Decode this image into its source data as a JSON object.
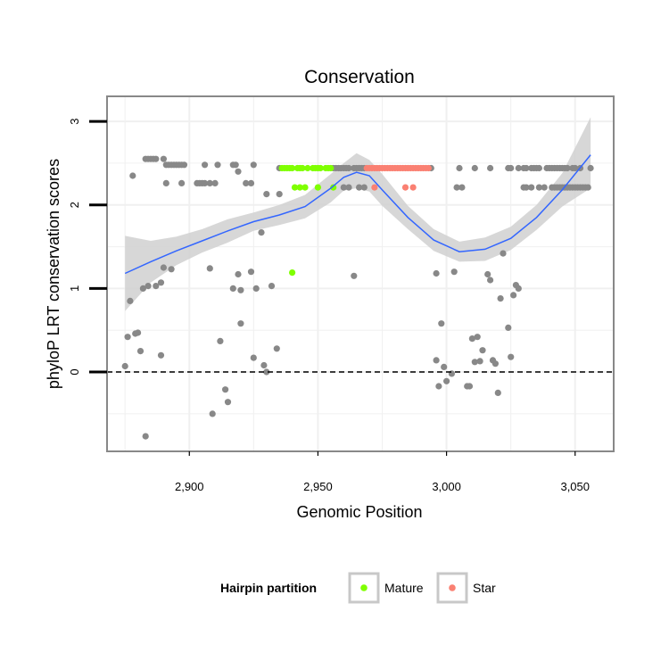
{
  "chart_data": {
    "type": "scatter",
    "title": "Conservation",
    "xlabel": "Genomic Position",
    "ylabel": "phyloP LRT conservation scores",
    "xlim": [
      2868,
      3065
    ],
    "ylim": [
      -0.95,
      3.3
    ],
    "x_ticks": [
      2900,
      2950,
      3000,
      3050
    ],
    "x_tick_labels": [
      "2,900",
      "2,950",
      "3,000",
      "3,050"
    ],
    "y_ticks": [
      0,
      1,
      2,
      3
    ],
    "y_tick_labels": [
      "0",
      "1",
      "2",
      "3"
    ],
    "grid": true,
    "reference_line": {
      "y": 0,
      "style": "dashed"
    },
    "legend": {
      "title": "Hairpin partition",
      "placement": "bottom",
      "entries": [
        {
          "label": "Mature",
          "color": "#7fff00"
        },
        {
          "label": "Star",
          "color": "#fa8072"
        }
      ]
    },
    "colors": {
      "other": "#888888",
      "smooth_line": "#3366ff",
      "ribbon": "#d0d0d0",
      "panel_border": "#888888",
      "grid": "#f0f0f0"
    },
    "series": [
      {
        "name": "Mature",
        "points": [
          [
            2936,
            2.44
          ],
          [
            2937,
            2.44
          ],
          [
            2938,
            2.44
          ],
          [
            2939,
            2.44
          ],
          [
            2940,
            2.44
          ],
          [
            2942,
            2.44
          ],
          [
            2943,
            2.44
          ],
          [
            2944,
            2.44
          ],
          [
            2946,
            2.44
          ],
          [
            2948,
            2.44
          ],
          [
            2949,
            2.44
          ],
          [
            2950,
            2.44
          ],
          [
            2951,
            2.44
          ],
          [
            2953,
            2.44
          ],
          [
            2954,
            2.44
          ],
          [
            2955,
            2.44
          ],
          [
            2941,
            2.21
          ],
          [
            2943,
            2.21
          ],
          [
            2945,
            2.21
          ],
          [
            2950,
            2.21
          ],
          [
            2956,
            2.21
          ],
          [
            2940,
            1.19
          ]
        ]
      },
      {
        "name": "Star",
        "points": [
          [
            2969,
            2.44
          ],
          [
            2970,
            2.44
          ],
          [
            2971,
            2.44
          ],
          [
            2972,
            2.44
          ],
          [
            2973,
            2.44
          ],
          [
            2974,
            2.44
          ],
          [
            2975,
            2.44
          ],
          [
            2976,
            2.44
          ],
          [
            2977,
            2.44
          ],
          [
            2978,
            2.44
          ],
          [
            2979,
            2.44
          ],
          [
            2980,
            2.44
          ],
          [
            2981,
            2.44
          ],
          [
            2982,
            2.44
          ],
          [
            2983,
            2.44
          ],
          [
            2984,
            2.44
          ],
          [
            2985,
            2.44
          ],
          [
            2986,
            2.44
          ],
          [
            2987,
            2.44
          ],
          [
            2988,
            2.44
          ],
          [
            2989,
            2.44
          ],
          [
            2990,
            2.44
          ],
          [
            2991,
            2.44
          ],
          [
            2992,
            2.44
          ],
          [
            2993,
            2.44
          ],
          [
            2972,
            2.21
          ],
          [
            2984,
            2.21
          ],
          [
            2987,
            2.21
          ]
        ]
      },
      {
        "name": "Other",
        "points": [
          [
            2878,
            2.35
          ],
          [
            2883,
            2.55
          ],
          [
            2884,
            2.55
          ],
          [
            2885,
            2.55
          ],
          [
            2886,
            2.55
          ],
          [
            2887,
            2.55
          ],
          [
            2890,
            2.55
          ],
          [
            2891,
            2.48
          ],
          [
            2892,
            2.48
          ],
          [
            2893,
            2.48
          ],
          [
            2894,
            2.48
          ],
          [
            2895,
            2.48
          ],
          [
            2896,
            2.48
          ],
          [
            2897,
            2.48
          ],
          [
            2898,
            2.48
          ],
          [
            2906,
            2.48
          ],
          [
            2911,
            2.48
          ],
          [
            2917,
            2.48
          ],
          [
            2918,
            2.48
          ],
          [
            2925,
            2.48
          ],
          [
            2891,
            2.26
          ],
          [
            2897,
            2.26
          ],
          [
            2903,
            2.26
          ],
          [
            2904,
            2.26
          ],
          [
            2905,
            2.26
          ],
          [
            2906,
            2.26
          ],
          [
            2908,
            2.26
          ],
          [
            2910,
            2.26
          ],
          [
            2922,
            2.26
          ],
          [
            2924,
            2.26
          ],
          [
            2919,
            2.4
          ],
          [
            2930,
            2.13
          ],
          [
            2935,
            2.13
          ],
          [
            2935,
            2.44
          ],
          [
            2956,
            2.44
          ],
          [
            2957,
            2.44
          ],
          [
            2958,
            2.44
          ],
          [
            2959,
            2.44
          ],
          [
            2960,
            2.44
          ],
          [
            2961,
            2.44
          ],
          [
            2962,
            2.44
          ],
          [
            2964,
            2.44
          ],
          [
            2965,
            2.44
          ],
          [
            2966,
            2.44
          ],
          [
            2967,
            2.44
          ],
          [
            2968,
            2.44
          ],
          [
            2960,
            2.21
          ],
          [
            2962,
            2.21
          ],
          [
            2966,
            2.21
          ],
          [
            2968,
            2.21
          ],
          [
            2994,
            2.44
          ],
          [
            3005,
            2.44
          ],
          [
            3011,
            2.44
          ],
          [
            3017,
            2.44
          ],
          [
            3024,
            2.44
          ],
          [
            3025,
            2.44
          ],
          [
            3028,
            2.44
          ],
          [
            3030,
            2.44
          ],
          [
            3031,
            2.44
          ],
          [
            3033,
            2.44
          ],
          [
            3034,
            2.44
          ],
          [
            3035,
            2.44
          ],
          [
            3036,
            2.44
          ],
          [
            3039,
            2.44
          ],
          [
            3040,
            2.44
          ],
          [
            3041,
            2.44
          ],
          [
            3042,
            2.44
          ],
          [
            3043,
            2.44
          ],
          [
            3044,
            2.44
          ],
          [
            3045,
            2.44
          ],
          [
            3046,
            2.44
          ],
          [
            3047,
            2.44
          ],
          [
            3049,
            2.44
          ],
          [
            3050,
            2.44
          ],
          [
            3052,
            2.44
          ],
          [
            3056,
            2.44
          ],
          [
            3004,
            2.21
          ],
          [
            3006,
            2.21
          ],
          [
            3030,
            2.21
          ],
          [
            3031,
            2.21
          ],
          [
            3033,
            2.21
          ],
          [
            3036,
            2.21
          ],
          [
            3038,
            2.21
          ],
          [
            3041,
            2.21
          ],
          [
            3042,
            2.21
          ],
          [
            3043,
            2.21
          ],
          [
            3044,
            2.21
          ],
          [
            3045,
            2.21
          ],
          [
            3046,
            2.21
          ],
          [
            3047,
            2.21
          ],
          [
            3048,
            2.21
          ],
          [
            3049,
            2.21
          ],
          [
            3050,
            2.21
          ],
          [
            3051,
            2.21
          ],
          [
            3052,
            2.21
          ],
          [
            3053,
            2.21
          ],
          [
            3054,
            2.21
          ],
          [
            3055,
            2.21
          ],
          [
            2877,
            0.85
          ],
          [
            2880,
            0.47
          ],
          [
            2882,
            1.0
          ],
          [
            2884,
            1.03
          ],
          [
            2887,
            1.03
          ],
          [
            2889,
            1.07
          ],
          [
            2890,
            1.25
          ],
          [
            2893,
            1.23
          ],
          [
            2876,
            0.42
          ],
          [
            2879,
            0.46
          ],
          [
            2881,
            0.25
          ],
          [
            2889,
            0.2
          ],
          [
            2875,
            0.07
          ],
          [
            2883,
            -0.77
          ],
          [
            2908,
            1.24
          ],
          [
            2912,
            0.37
          ],
          [
            2914,
            -0.21
          ],
          [
            2915,
            -0.36
          ],
          [
            2909,
            -0.5
          ],
          [
            2917,
            1.0
          ],
          [
            2919,
            1.17
          ],
          [
            2920,
            0.98
          ],
          [
            2920,
            0.58
          ],
          [
            2924,
            1.2
          ],
          [
            2926,
            1.0
          ],
          [
            2928,
            1.67
          ],
          [
            2925,
            0.17
          ],
          [
            2929,
            0.08
          ],
          [
            2930,
            0.0
          ],
          [
            2932,
            1.03
          ],
          [
            2934,
            0.28
          ],
          [
            2964,
            1.15
          ],
          [
            2996,
            1.18
          ],
          [
            2998,
            0.58
          ],
          [
            2996,
            0.14
          ],
          [
            2997,
            -0.17
          ],
          [
            2999,
            0.06
          ],
          [
            3000,
            -0.11
          ],
          [
            3002,
            -0.02
          ],
          [
            3003,
            1.2
          ],
          [
            3008,
            -0.17
          ],
          [
            3009,
            -0.17
          ],
          [
            3010,
            0.4
          ],
          [
            3011,
            0.12
          ],
          [
            3012,
            0.42
          ],
          [
            3013,
            0.13
          ],
          [
            3014,
            0.26
          ],
          [
            3016,
            1.17
          ],
          [
            3017,
            1.1
          ],
          [
            3018,
            0.14
          ],
          [
            3019,
            0.1
          ],
          [
            3020,
            -0.25
          ],
          [
            3021,
            0.88
          ],
          [
            3022,
            1.42
          ],
          [
            3024,
            0.53
          ],
          [
            3025,
            0.18
          ],
          [
            3026,
            0.92
          ],
          [
            3027,
            1.04
          ],
          [
            3028,
            1.0
          ]
        ]
      }
    ],
    "smooth": {
      "x": [
        2875,
        2885,
        2895,
        2905,
        2915,
        2925,
        2935,
        2945,
        2955,
        2960,
        2965,
        2970,
        2975,
        2985,
        2995,
        3005,
        3015,
        3025,
        3035,
        3045,
        3056
      ],
      "y": [
        1.18,
        1.32,
        1.45,
        1.57,
        1.69,
        1.8,
        1.88,
        1.98,
        2.2,
        2.33,
        2.39,
        2.35,
        2.18,
        1.85,
        1.58,
        1.44,
        1.47,
        1.6,
        1.85,
        2.18,
        2.6
      ],
      "lo": [
        0.73,
        1.07,
        1.28,
        1.43,
        1.55,
        1.69,
        1.76,
        1.84,
        2.03,
        2.17,
        2.2,
        2.16,
        1.99,
        1.71,
        1.45,
        1.32,
        1.33,
        1.46,
        1.7,
        1.98,
        2.2
      ],
      "hi": [
        1.63,
        1.57,
        1.62,
        1.71,
        1.83,
        1.91,
        2.0,
        2.12,
        2.37,
        2.5,
        2.62,
        2.54,
        2.37,
        1.99,
        1.71,
        1.56,
        1.61,
        1.74,
        2.0,
        2.38,
        3.05
      ]
    }
  }
}
